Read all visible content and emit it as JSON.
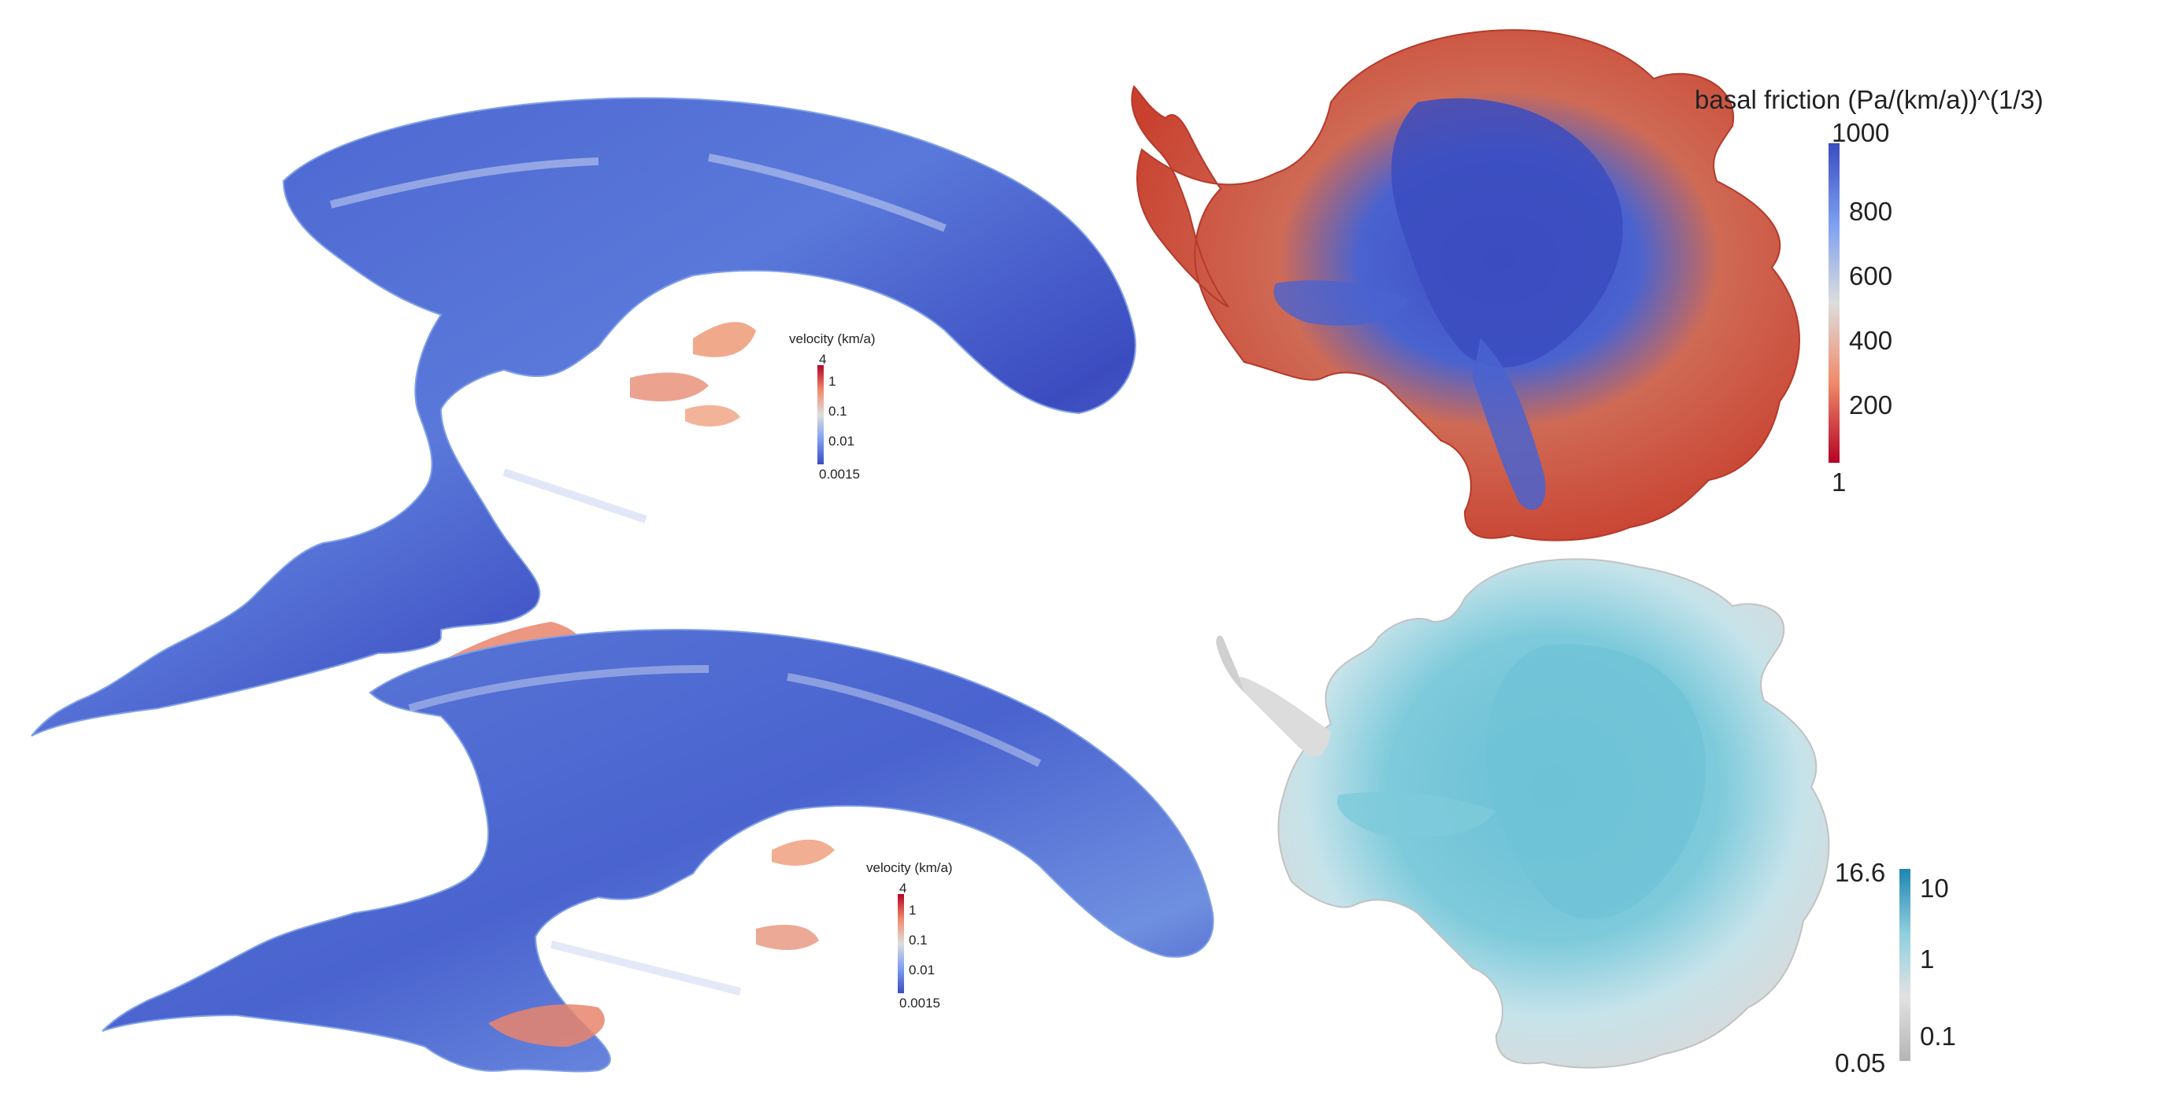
{
  "panels": {
    "top_left": {
      "colorbar": {
        "title": "velocity (km/a)",
        "max_label": "4",
        "ticks": [
          "1",
          "0.1",
          "0.01"
        ],
        "min_label": "0.0015",
        "colors": [
          "#b40426",
          "#f08a6a",
          "#dddddd",
          "#7c9ff0",
          "#3b4cc0"
        ]
      }
    },
    "bottom_left": {
      "colorbar": {
        "title": "velocity (km/a)",
        "max_label": "4",
        "ticks": [
          "1",
          "0.1",
          "0.01"
        ],
        "min_label": "0.0015",
        "colors": [
          "#b40426",
          "#f08a6a",
          "#dddddd",
          "#7c9ff0",
          "#3b4cc0"
        ]
      }
    },
    "top_right": {
      "colorbar": {
        "title": "basal friction (Pa/(km/a))^(1/3)",
        "max_label": "1000",
        "ticks": [
          "800",
          "600",
          "400",
          "200"
        ],
        "min_label": "1",
        "colors": [
          "#3b4cc0",
          "#7c9ff0",
          "#dddddd",
          "#f08a6a",
          "#b40426"
        ]
      }
    },
    "bottom_right": {
      "colorbar": {
        "max_label": "16.6",
        "ticks": [
          "10",
          "1",
          "0.1"
        ],
        "min_label": "0.05",
        "colors": [
          "#1f86b0",
          "#8fcfdf",
          "#e2e2e2",
          "#b5b5b5"
        ]
      }
    }
  },
  "colors": {
    "ice_blue": "#3b4cc0",
    "ice_mid": "#6f8fe0",
    "ice_red": "#d0432f",
    "ice_orange": "#f0a080",
    "teal": "#6fc3d6",
    "grey": "#d8d8d8"
  }
}
